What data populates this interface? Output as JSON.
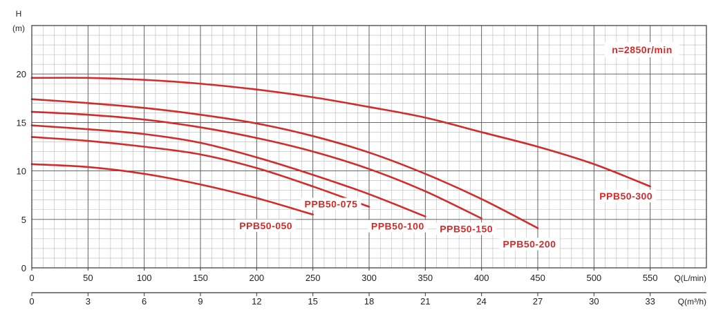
{
  "chart_data": {
    "type": "line",
    "title": "",
    "annotation": "n=2850r/min",
    "ylabel_symbol": "H",
    "ylabel_unit": "(m)",
    "xlabel_lmin": "Q(L/min)",
    "xlabel_m3h": "Q(m³/h)",
    "xlim": [
      0,
      600
    ],
    "ylim": [
      0,
      25
    ],
    "grid": true,
    "y_ticks": [
      0,
      5,
      10,
      15,
      20
    ],
    "x_ticks_lmin": [
      0,
      50,
      100,
      150,
      200,
      250,
      300,
      350,
      400,
      450,
      500,
      550
    ],
    "x_ticks_m3h": [
      0,
      3,
      6,
      9,
      12,
      15,
      18,
      21,
      24,
      27,
      30,
      33
    ],
    "line_color": "#d12b2b",
    "series": [
      {
        "name": "PPB50-050",
        "x": [
          0,
          50,
          100,
          150,
          200,
          250
        ],
        "y": [
          10.7,
          10.4,
          9.7,
          8.6,
          7.2,
          5.5
        ]
      },
      {
        "name": "PPB50-075",
        "x": [
          0,
          50,
          100,
          150,
          200,
          250,
          300
        ],
        "y": [
          13.5,
          13.1,
          12.5,
          11.7,
          10.3,
          8.4,
          6.3
        ]
      },
      {
        "name": "PPB50-100",
        "x": [
          0,
          50,
          100,
          150,
          200,
          250,
          300,
          350
        ],
        "y": [
          14.7,
          14.3,
          13.8,
          12.9,
          11.4,
          9.6,
          7.6,
          5.3
        ]
      },
      {
        "name": "PPB50-150",
        "x": [
          0,
          50,
          100,
          150,
          200,
          250,
          300,
          350,
          400
        ],
        "y": [
          16.1,
          15.8,
          15.3,
          14.5,
          13.4,
          12.0,
          10.2,
          7.9,
          5.1
        ]
      },
      {
        "name": "PPB50-200",
        "x": [
          0,
          50,
          100,
          150,
          200,
          250,
          300,
          350,
          400,
          450
        ],
        "y": [
          17.4,
          17.0,
          16.5,
          15.8,
          14.9,
          13.6,
          11.9,
          9.7,
          7.1,
          4.1
        ]
      },
      {
        "name": "PPB50-300",
        "x": [
          0,
          50,
          100,
          150,
          200,
          250,
          300,
          350,
          400,
          450,
          500,
          550
        ],
        "y": [
          19.6,
          19.6,
          19.4,
          19.0,
          18.4,
          17.6,
          16.6,
          15.5,
          14.0,
          12.5,
          10.7,
          8.4
        ]
      }
    ]
  }
}
